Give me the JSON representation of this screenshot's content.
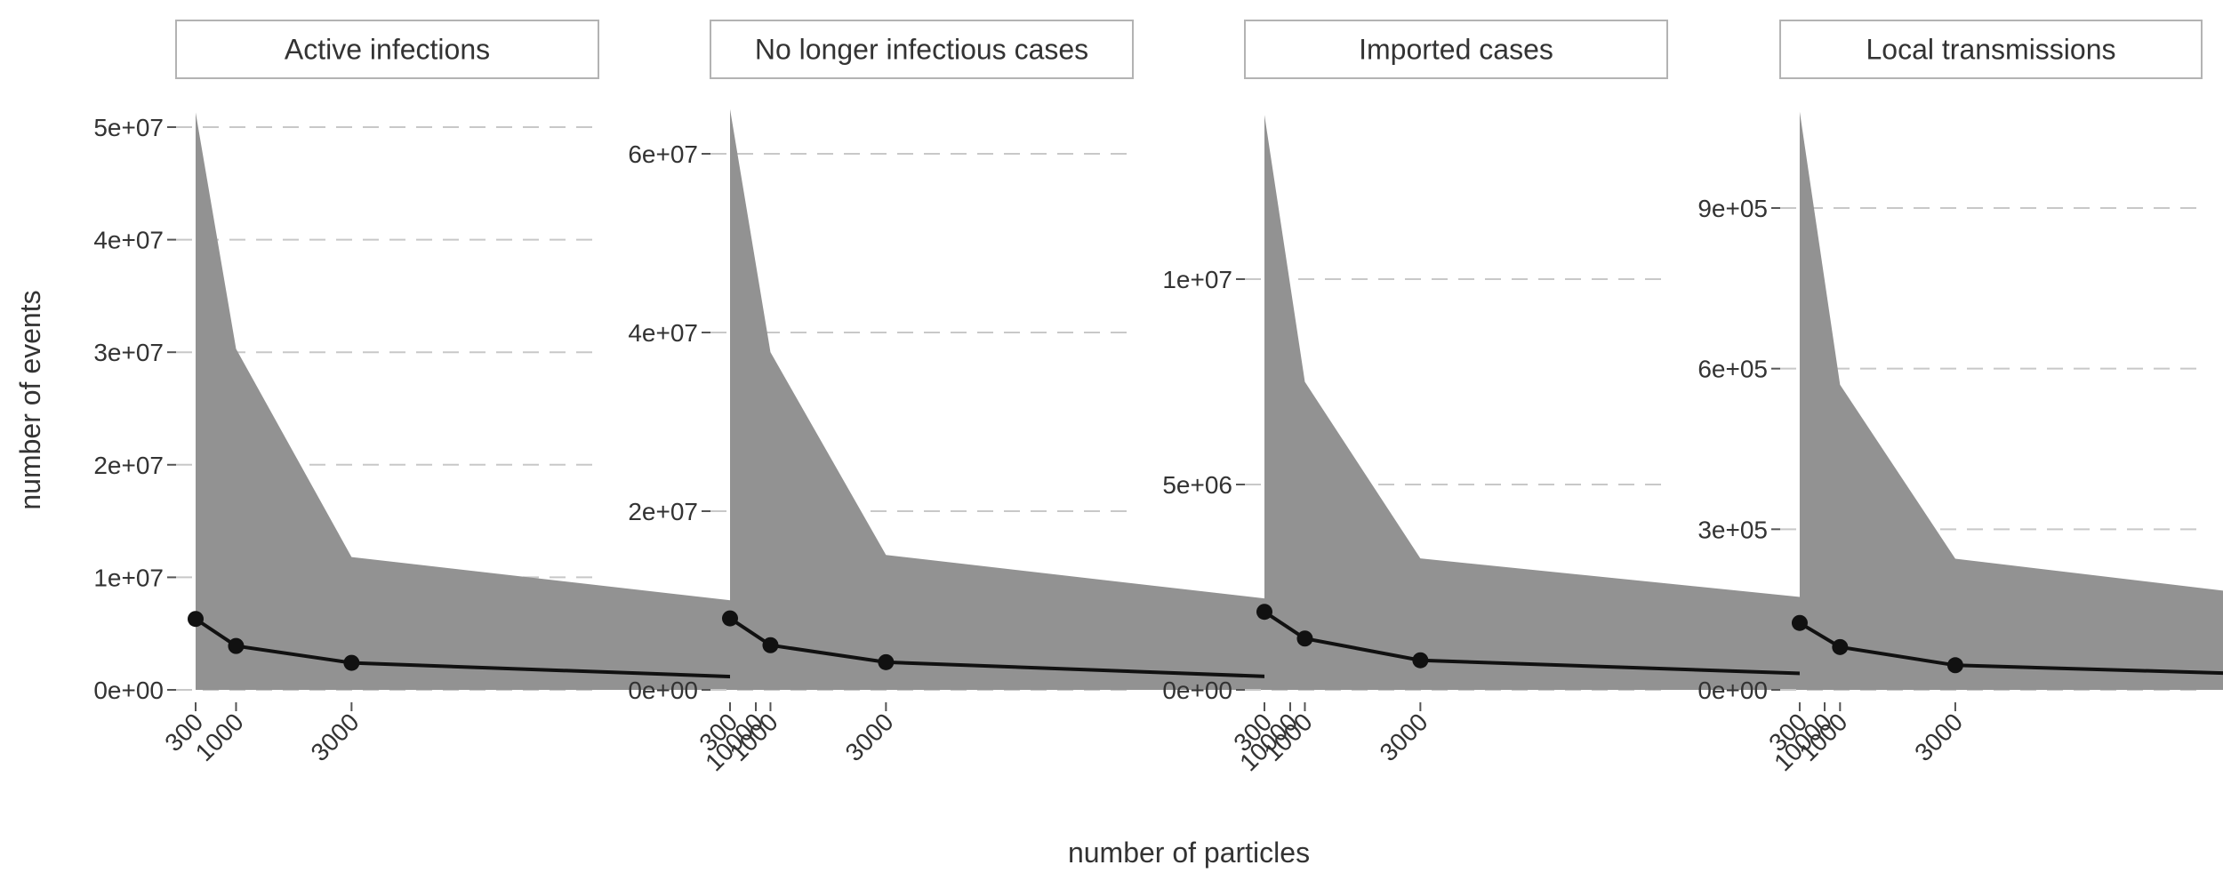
{
  "chart_data": {
    "type": "area",
    "xlabel": "number of particles",
    "ylabel": "number of events",
    "x_ticks": [
      "300",
      "1000",
      "3000",
      "10000"
    ],
    "x": [
      300,
      1000,
      3000,
      10000
    ],
    "xlim": [
      300,
      10000
    ],
    "panels": [
      {
        "title": "Active infections",
        "ylim": [
          0,
          50000000
        ],
        "y_ticks": [
          {
            "value": 0,
            "label": "0e+00"
          },
          {
            "value": 10000000,
            "label": "1e+07"
          },
          {
            "value": 20000000,
            "label": "2e+07"
          },
          {
            "value": 30000000,
            "label": "3e+07"
          },
          {
            "value": 40000000,
            "label": "4e+07"
          },
          {
            "value": 50000000,
            "label": "5e+07"
          }
        ],
        "median": [
          6300000,
          3900000,
          2400000,
          1100000
        ],
        "upper": [
          51300000,
          30300000,
          11800000,
          7700000
        ],
        "lower": [
          0,
          0,
          0,
          0
        ]
      },
      {
        "title": "No longer infectious cases",
        "ylim": [
          0,
          60000000
        ],
        "y_ticks": [
          {
            "value": 0,
            "label": "0e+00"
          },
          {
            "value": 20000000,
            "label": "2e+07"
          },
          {
            "value": 40000000,
            "label": "4e+07"
          },
          {
            "value": 60000000,
            "label": "6e+07"
          }
        ],
        "median": [
          8000000,
          5000000,
          3100000,
          1400000
        ],
        "upper": [
          65000000,
          37800000,
          15100000,
          9900000
        ],
        "lower": [
          0,
          0,
          0,
          0
        ]
      },
      {
        "title": "Imported cases",
        "ylim": [
          0,
          10000000
        ],
        "y_ticks": [
          {
            "value": 0,
            "label": "0e+00"
          },
          {
            "value": 5000000,
            "label": "5e+06"
          },
          {
            "value": 10000000,
            "label": "1e+07"
          }
        ],
        "median": [
          1900000,
          1250000,
          720000,
          380000
        ],
        "upper": [
          14000000,
          7500000,
          3200000,
          2200000
        ],
        "lower": [
          0,
          0,
          0,
          0
        ]
      },
      {
        "title": "Local transmissions",
        "ylim": [
          0,
          900000
        ],
        "y_ticks": [
          {
            "value": 0,
            "label": "0e+00"
          },
          {
            "value": 300000,
            "label": "3e+05"
          },
          {
            "value": 600000,
            "label": "6e+05"
          },
          {
            "value": 900000,
            "label": "9e+05"
          }
        ],
        "median": [
          125000,
          80000,
          46000,
          24000
        ],
        "upper": [
          1080000,
          570000,
          245000,
          155000
        ],
        "lower": [
          0,
          0,
          0,
          0
        ]
      }
    ]
  }
}
